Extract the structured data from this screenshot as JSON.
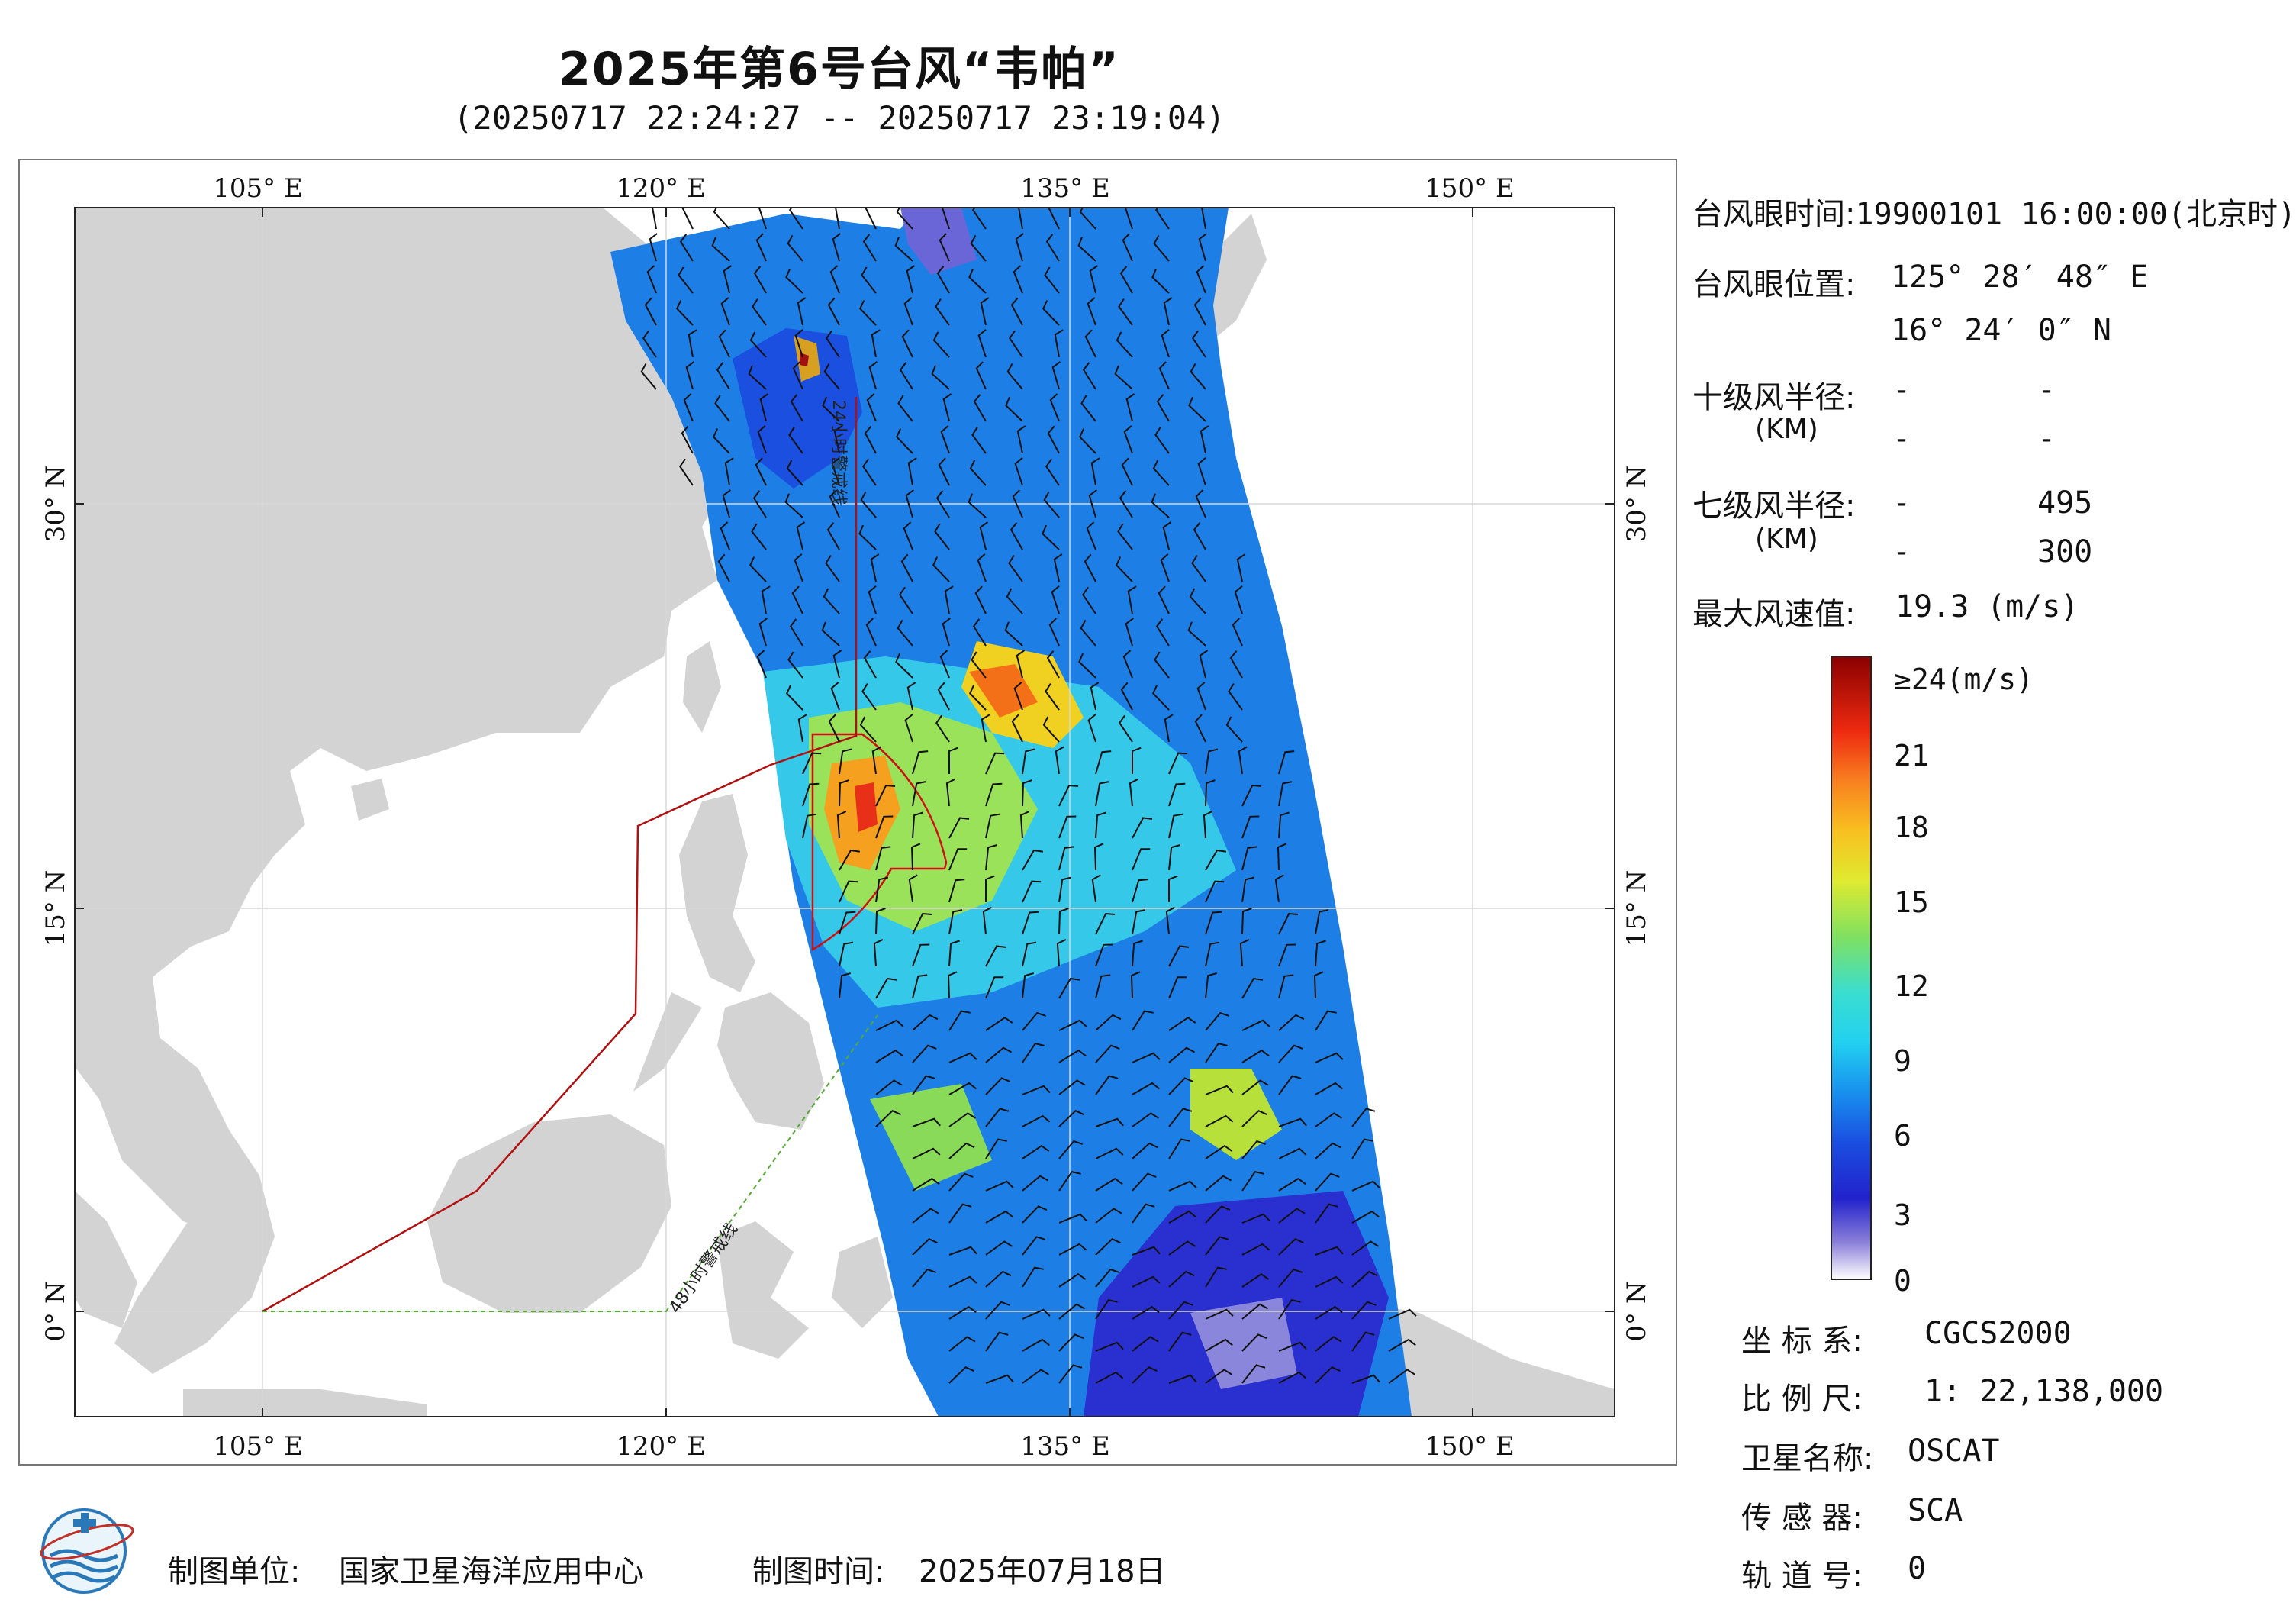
{
  "title": "2025年第6号台风“韦帕”",
  "subtitle": "(20250717 22:24:27 -- 20250717 23:19:04)",
  "map": {
    "lon_labels": [
      "105° E",
      "120° E",
      "135° E",
      "150° E"
    ],
    "lat_labels": [
      "30° N",
      "15° N",
      "0° N"
    ],
    "warning_24h": "24小时警戒线",
    "warning_48h": "48小时警戒线",
    "colors": {
      "land": "#d3d3d3",
      "sea": "#ffffff",
      "warning_24h": "#b01010",
      "warning_48h": "#55aa33",
      "typhoon_circle": "#cc1111"
    }
  },
  "info": {
    "eye_time_label": "台风眼时间:",
    "eye_time": "19900101 16:00:00(北京时)",
    "eye_pos_label": "台风眼位置:",
    "eye_lon": "125° 28′ 48″ E",
    "eye_lat": "16° 24′ 0″ N",
    "r10_label": "十级风半径:",
    "r10_unit": "(KM)",
    "r10_values": [
      "-",
      "-",
      "-",
      "-"
    ],
    "r7_label": "七级风半径:",
    "r7_unit": "(KM)",
    "r7_values": [
      "-",
      "495",
      "-",
      "300"
    ],
    "max_wind_label": "最大风速值:",
    "max_wind": "19.3",
    "max_wind_unit": "(m/s)"
  },
  "colorbar": {
    "labels": [
      "≥24(m/s)",
      "21",
      "18",
      "15",
      "12",
      "9",
      "6",
      "3",
      "0"
    ]
  },
  "meta": {
    "crs_label": "坐 标 系:",
    "crs": "CGCS2000",
    "scale_label": "比 例 尺:",
    "scale": "1: 22,138,000",
    "satellite_label": "卫星名称:",
    "satellite": "OSCAT",
    "sensor_label": "传 感 器:",
    "sensor": "SCA",
    "orbit_label": "轨 道 号:",
    "orbit": "0"
  },
  "footer": {
    "maker_label": "制图单位:",
    "maker": "国家卫星海洋应用中心",
    "date_label": "制图时间:",
    "date": "2025年07月18日"
  }
}
